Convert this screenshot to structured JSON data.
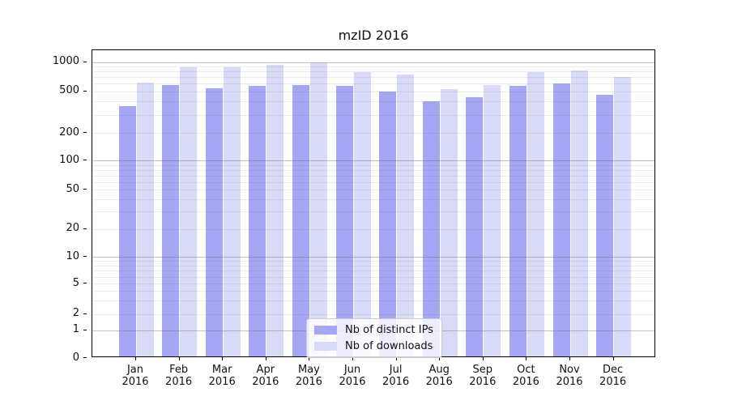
{
  "title": "mzID 2016",
  "chart_data": {
    "type": "bar",
    "title": "mzID 2016",
    "categories": [
      "Jan",
      "Feb",
      "Mar",
      "Apr",
      "May",
      "Jun",
      "Jul",
      "Aug",
      "Sep",
      "Oct",
      "Nov",
      "Dec"
    ],
    "x_year_label": "2016",
    "series": [
      {
        "name": "Nb of distinct IPs",
        "color": "#a6a6f4",
        "values": [
          347,
          563,
          514,
          545,
          563,
          545,
          481,
          385,
          423,
          552,
          577,
          451
        ]
      },
      {
        "name": "Nb of downloads",
        "color": "#d9d9f8",
        "values": [
          591,
          849,
          853,
          904,
          952,
          762,
          720,
          512,
          563,
          767,
          787,
          681
        ]
      }
    ],
    "y_axis": {
      "scale": "symlog",
      "ticks": [
        0,
        1,
        2,
        5,
        10,
        20,
        50,
        100,
        200,
        500,
        1000
      ],
      "major_grid_ticks": [
        1,
        10,
        100,
        1000
      ],
      "ylim": [
        0,
        1300
      ]
    },
    "legend": {
      "position": "lower-center"
    },
    "grid": "on",
    "colors": {
      "bar_ips": "#a6a6f4",
      "bar_downloads": "#d9d9f8",
      "major_grid": "#c9c9c9",
      "minor_grid": "#ededed",
      "spine": "#000000",
      "background": "#ffffff"
    }
  }
}
